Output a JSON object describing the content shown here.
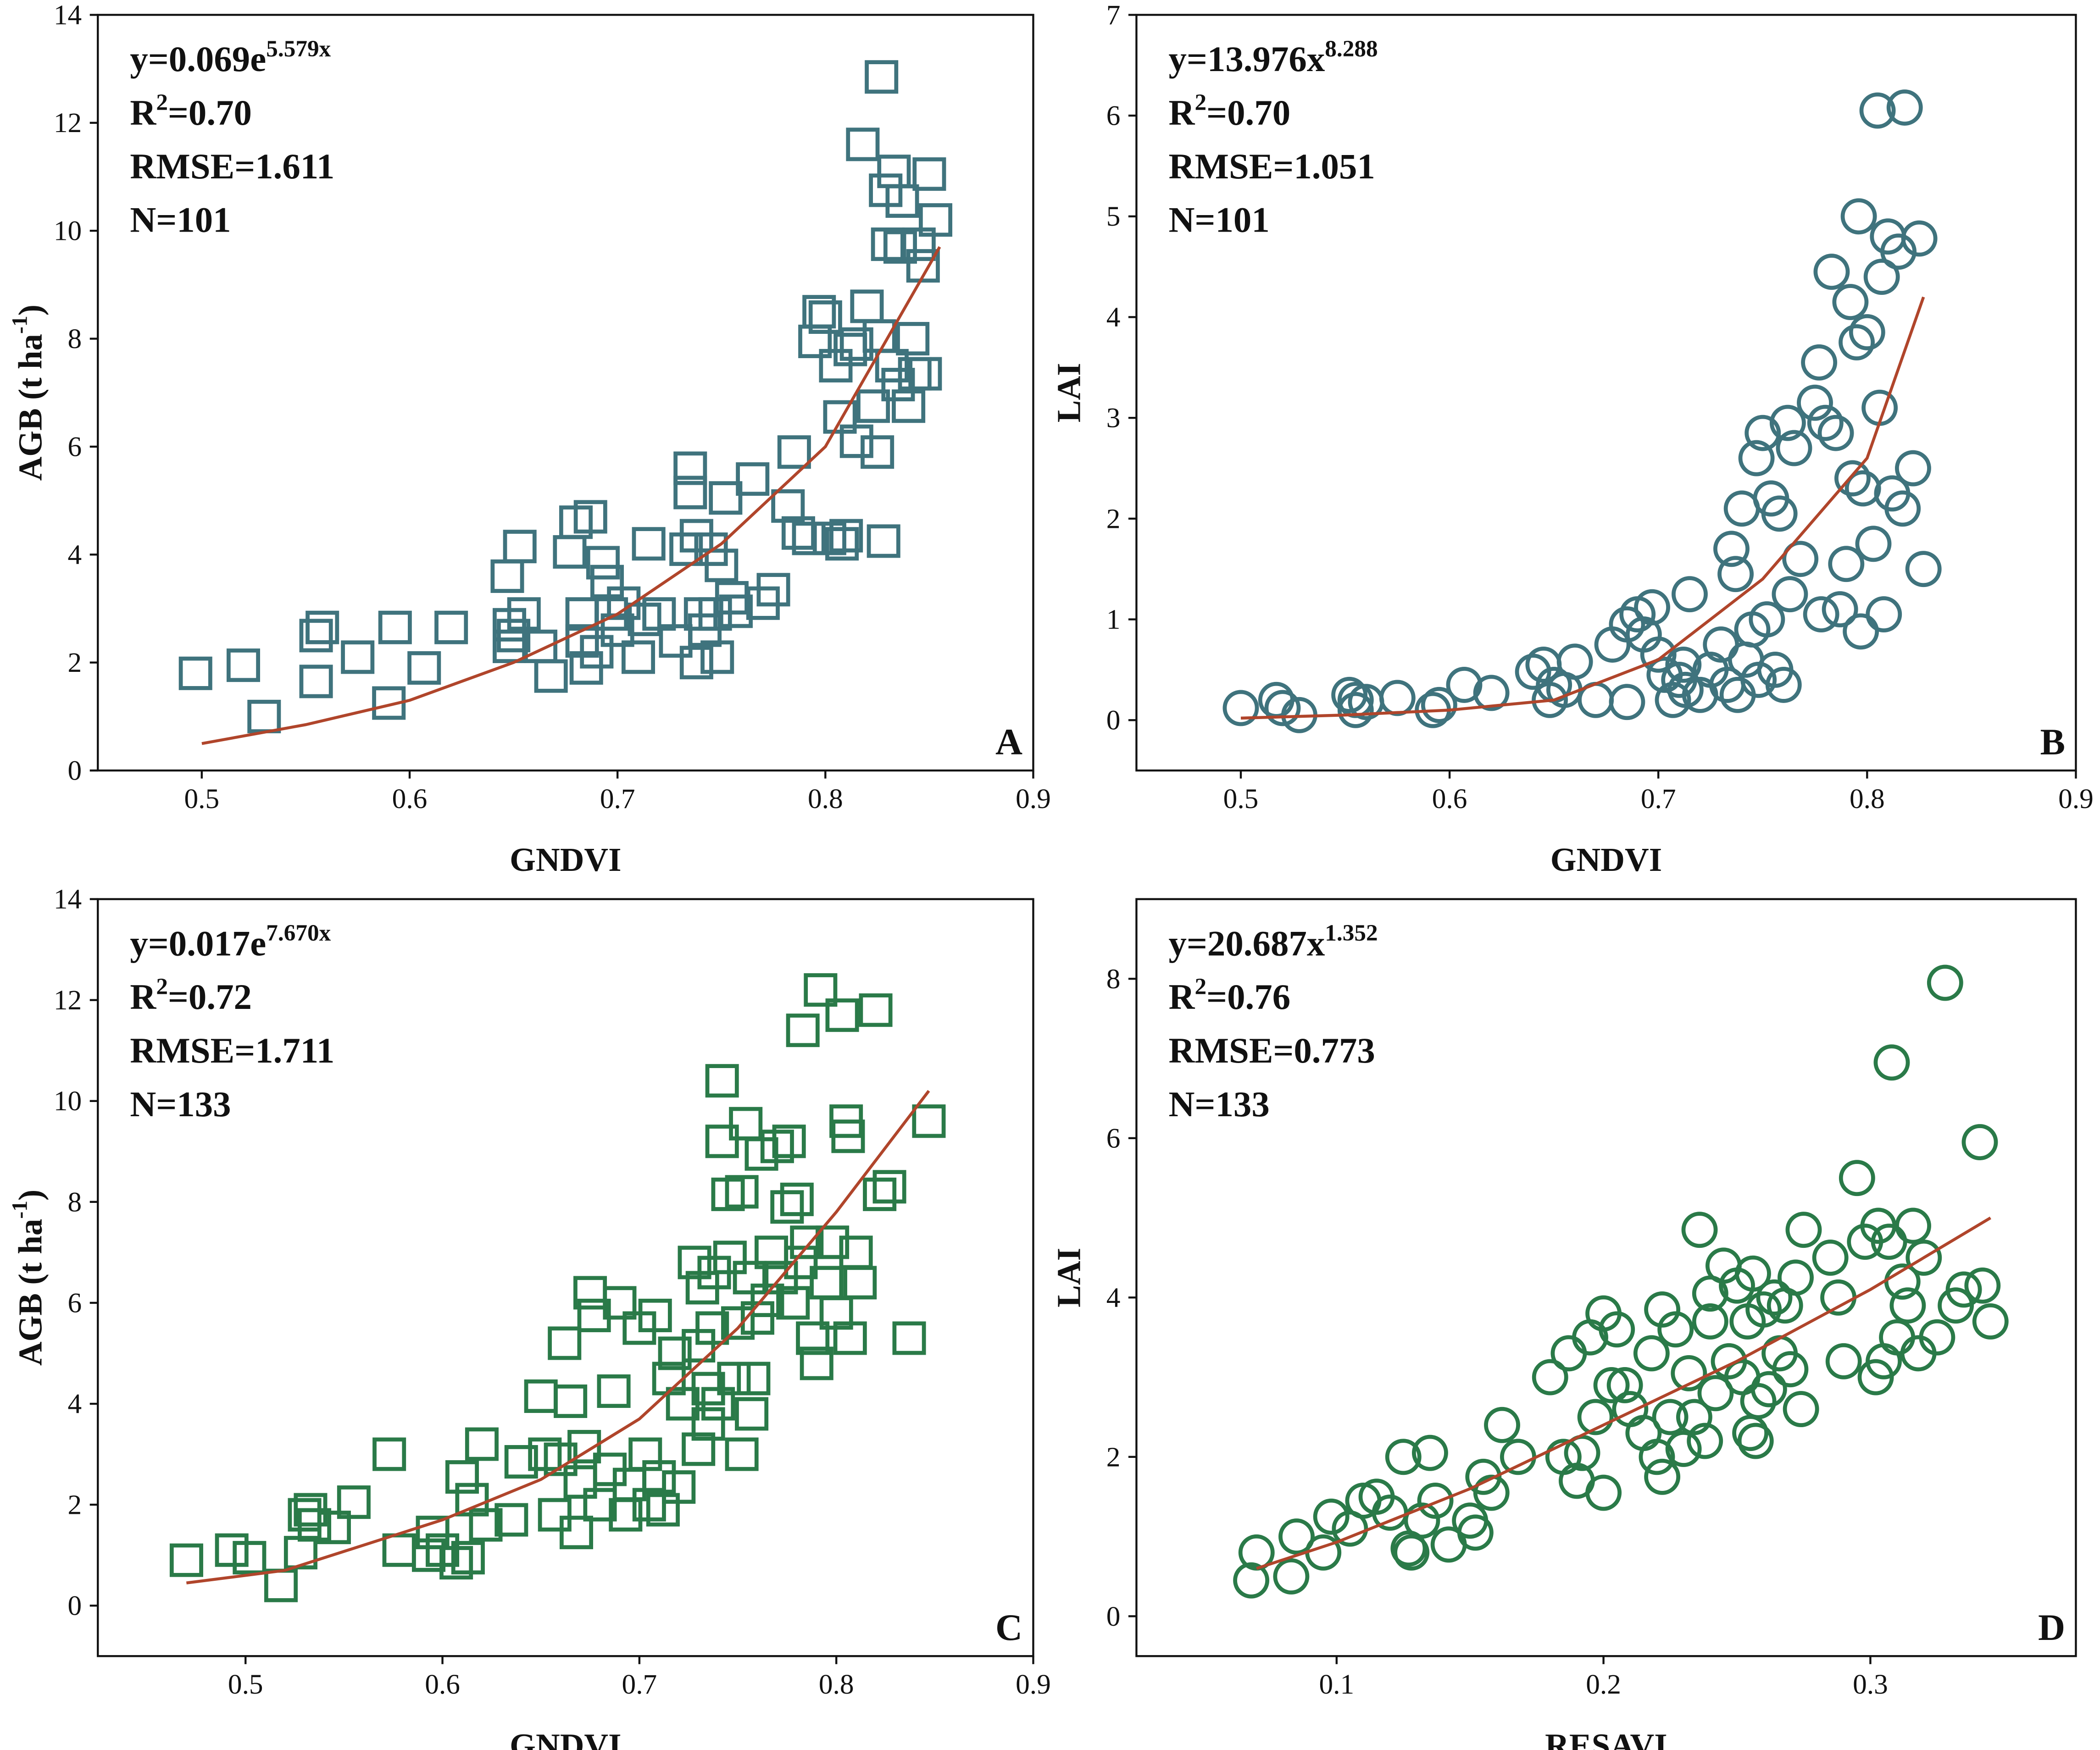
{
  "chart_data": [
    {
      "type": "scatter",
      "marker": "square",
      "color": "#3f737d",
      "fit_color": "#b0452b",
      "xlabel": {
        "text": "GNDVI"
      },
      "ylabel": {
        "text": "AGB (t ha",
        "sup": "-1",
        "tail": ")"
      },
      "panel_label": "A",
      "annotations": [
        {
          "text": "y=0.069e",
          "sup": "5.579x"
        },
        {
          "text": "R",
          "sup": "2",
          "tail": "=0.70"
        },
        {
          "text": "RMSE=1.611"
        },
        {
          "text": "N=101"
        }
      ],
      "xlim": [
        0.45,
        0.9
      ],
      "ylim": [
        0,
        14
      ],
      "xticks": [
        0.5,
        0.6,
        0.7,
        0.8,
        0.9
      ],
      "yticks": [
        0,
        2,
        4,
        6,
        8,
        10,
        12,
        14
      ],
      "x": [
        0.497,
        0.52,
        0.53,
        0.555,
        0.555,
        0.558,
        0.575,
        0.59,
        0.593,
        0.607,
        0.62,
        0.647,
        0.648,
        0.648,
        0.65,
        0.653,
        0.655,
        0.663,
        0.668,
        0.677,
        0.68,
        0.683,
        0.683,
        0.685,
        0.687,
        0.69,
        0.693,
        0.695,
        0.697,
        0.7,
        0.703,
        0.71,
        0.713,
        0.715,
        0.72,
        0.728,
        0.733,
        0.735,
        0.735,
        0.738,
        0.738,
        0.74,
        0.742,
        0.745,
        0.747,
        0.748,
        0.75,
        0.752,
        0.755,
        0.757,
        0.765,
        0.77,
        0.775,
        0.782,
        0.785,
        0.787,
        0.792,
        0.795,
        0.797,
        0.8,
        0.802,
        0.805,
        0.807,
        0.808,
        0.81,
        0.812,
        0.815,
        0.815,
        0.818,
        0.82,
        0.823,
        0.825,
        0.826,
        0.828,
        0.827,
        0.829,
        0.83,
        0.832,
        0.833,
        0.835,
        0.836,
        0.837,
        0.84,
        0.842,
        0.843,
        0.845,
        0.847,
        0.848,
        0.85,
        0.853
      ],
      "values": [
        1.8,
        1.95,
        1.0,
        2.5,
        1.65,
        2.65,
        2.1,
        1.25,
        2.65,
        1.9,
        2.65,
        3.6,
        2.7,
        2.3,
        2.5,
        4.15,
        2.9,
        2.3,
        1.75,
        4.05,
        4.6,
        2.9,
        2.4,
        1.9,
        4.7,
        2.2,
        3.85,
        3.5,
        2.9,
        2.6,
        3.1,
        2.1,
        2.8,
        4.2,
        2.9,
        2.4,
        4.1,
        5.6,
        5.15,
        4.35,
        2.0,
        2.9,
        2.6,
        4.1,
        2.9,
        2.1,
        3.8,
        5.05,
        3.2,
        2.95,
        5.4,
        3.1,
        3.35,
        4.9,
        5.9,
        4.4,
        4.3,
        7.95,
        8.5,
        8.4,
        4.3,
        7.5,
        6.55,
        4.2,
        4.35,
        7.8,
        6.1,
        7.9,
        11.6,
        8.6,
        6.75,
        5.9,
        8.05,
        4.25,
        12.85,
        10.75,
        9.75,
        7.5,
        11.1,
        7.15,
        9.7,
        10.55,
        6.75,
        8.0,
        7.35,
        9.75,
        9.35,
        7.35,
        11.05,
        10.2
      ],
      "fit": {
        "x": [
          0.5,
          0.55,
          0.6,
          0.65,
          0.7,
          0.75,
          0.8,
          0.855
        ],
        "values": [
          0.5,
          0.85,
          1.3,
          2.0,
          2.9,
          4.2,
          6.0,
          9.7
        ]
      }
    },
    {
      "type": "scatter",
      "marker": "circle",
      "color": "#3f737d",
      "fit_color": "#b0452b",
      "xlabel": {
        "text": "GNDVI"
      },
      "ylabel": {
        "text": "LAI"
      },
      "panel_label": "B",
      "annotations": [
        {
          "text": "y=13.976x",
          "sup": "8.288"
        },
        {
          "text": "R",
          "sup": "2",
          "tail": "=0.70"
        },
        {
          "text": "RMSE=1.051"
        },
        {
          "text": "N=101"
        }
      ],
      "xlim": [
        0.45,
        0.9
      ],
      "ylim": [
        -0.5,
        7
      ],
      "xticks": [
        0.5,
        0.6,
        0.7,
        0.8,
        0.9
      ],
      "yticks": [
        0,
        1,
        2,
        3,
        4,
        5,
        6,
        7
      ],
      "x": [
        0.5,
        0.517,
        0.52,
        0.528,
        0.552,
        0.555,
        0.555,
        0.56,
        0.575,
        0.592,
        0.595,
        0.607,
        0.62,
        0.64,
        0.645,
        0.648,
        0.65,
        0.655,
        0.66,
        0.67,
        0.678,
        0.685,
        0.685,
        0.69,
        0.693,
        0.697,
        0.7,
        0.703,
        0.707,
        0.71,
        0.712,
        0.713,
        0.715,
        0.72,
        0.725,
        0.73,
        0.733,
        0.735,
        0.737,
        0.738,
        0.74,
        0.742,
        0.745,
        0.747,
        0.748,
        0.75,
        0.752,
        0.754,
        0.756,
        0.758,
        0.76,
        0.762,
        0.763,
        0.765,
        0.768,
        0.775,
        0.777,
        0.778,
        0.78,
        0.783,
        0.785,
        0.787,
        0.79,
        0.792,
        0.793,
        0.795,
        0.796,
        0.797,
        0.798,
        0.8,
        0.803,
        0.805,
        0.806,
        0.807,
        0.808,
        0.81,
        0.812,
        0.815,
        0.817,
        0.818,
        0.822,
        0.825,
        0.827
      ],
      "values": [
        0.12,
        0.2,
        0.12,
        0.05,
        0.25,
        0.1,
        0.2,
        0.18,
        0.22,
        0.1,
        0.15,
        0.35,
        0.27,
        0.48,
        0.55,
        0.2,
        0.35,
        0.3,
        0.58,
        0.2,
        0.75,
        0.18,
        0.95,
        1.05,
        0.85,
        1.12,
        0.65,
        0.45,
        0.2,
        0.4,
        0.55,
        0.3,
        1.25,
        0.25,
        0.5,
        0.75,
        0.35,
        1.7,
        1.45,
        0.25,
        2.1,
        0.6,
        0.9,
        2.6,
        0.4,
        2.85,
        1.0,
        2.2,
        0.5,
        2.05,
        0.35,
        2.95,
        1.25,
        2.7,
        1.6,
        3.15,
        3.55,
        1.05,
        2.95,
        4.45,
        2.85,
        1.1,
        1.55,
        4.15,
        2.4,
        3.75,
        5.0,
        0.88,
        2.3,
        3.85,
        1.75,
        6.05,
        3.1,
        4.4,
        1.05,
        4.8,
        2.25,
        4.65,
        2.1,
        6.08,
        2.5,
        4.78,
        1.5
      ],
      "fit": {
        "x": [
          0.5,
          0.55,
          0.6,
          0.65,
          0.7,
          0.75,
          0.8,
          0.827
        ],
        "values": [
          0.02,
          0.05,
          0.1,
          0.2,
          0.6,
          1.4,
          2.6,
          4.2
        ]
      }
    },
    {
      "type": "scatter",
      "marker": "square",
      "color": "#2a7a48",
      "fit_color": "#b0452b",
      "xlabel": {
        "text": "GNDVI"
      },
      "ylabel": {
        "text": "AGB (t ha",
        "sup": "-1",
        "tail": ")"
      },
      "panel_label": "C",
      "annotations": [
        {
          "text": "y=0.017e",
          "sup": "7.670x"
        },
        {
          "text": "R",
          "sup": "2",
          "tail": "=0.72"
        },
        {
          "text": "RMSE=1.711"
        },
        {
          "text": "N=133"
        }
      ],
      "xlim": [
        0.425,
        0.9
      ],
      "ylim": [
        -1,
        14
      ],
      "xticks": [
        0.5,
        0.6,
        0.7,
        0.8,
        0.9
      ],
      "yticks": [
        0,
        2,
        4,
        6,
        8,
        10,
        12,
        14
      ],
      "x": [
        0.47,
        0.493,
        0.502,
        0.518,
        0.528,
        0.53,
        0.533,
        0.535,
        0.545,
        0.555,
        0.573,
        0.578,
        0.593,
        0.595,
        0.6,
        0.607,
        0.61,
        0.613,
        0.615,
        0.62,
        0.622,
        0.635,
        0.64,
        0.65,
        0.652,
        0.657,
        0.66,
        0.662,
        0.665,
        0.668,
        0.67,
        0.672,
        0.675,
        0.677,
        0.68,
        0.685,
        0.687,
        0.69,
        0.693,
        0.695,
        0.7,
        0.703,
        0.705,
        0.708,
        0.71,
        0.712,
        0.715,
        0.718,
        0.72,
        0.722,
        0.728,
        0.73,
        0.73,
        0.732,
        0.735,
        0.735,
        0.737,
        0.738,
        0.74,
        0.742,
        0.742,
        0.745,
        0.746,
        0.748,
        0.75,
        0.752,
        0.752,
        0.754,
        0.756,
        0.757,
        0.758,
        0.76,
        0.762,
        0.765,
        0.767,
        0.77,
        0.772,
        0.775,
        0.776,
        0.778,
        0.78,
        0.782,
        0.783,
        0.785,
        0.788,
        0.79,
        0.792,
        0.795,
        0.798,
        0.8,
        0.803,
        0.805,
        0.806,
        0.807,
        0.81,
        0.812,
        0.82,
        0.822,
        0.827,
        0.837,
        0.847
      ],
      "values": [
        0.9,
        1.1,
        0.95,
        0.4,
        1.05,
        1.8,
        1.9,
        1.6,
        1.55,
        2.05,
        3.0,
        1.1,
        1.0,
        1.45,
        1.1,
        0.85,
        2.55,
        0.95,
        2.1,
        3.2,
        1.6,
        1.7,
        2.85,
        4.15,
        3.0,
        1.8,
        2.9,
        5.2,
        4.05,
        1.45,
        2.45,
        3.15,
        6.2,
        5.75,
        2.0,
        2.7,
        4.25,
        6.0,
        1.8,
        2.4,
        5.5,
        3.0,
        2.0,
        5.75,
        2.55,
        1.9,
        4.5,
        5.0,
        2.35,
        4.0,
        6.8,
        3.1,
        5.15,
        6.3,
        3.6,
        4.3,
        5.5,
        6.6,
        4.0,
        9.2,
        10.4,
        8.15,
        6.9,
        4.5,
        5.6,
        3.0,
        8.2,
        9.55,
        6.5,
        3.8,
        4.5,
        5.7,
        8.95,
        6.05,
        7.0,
        9.1,
        6.5,
        7.9,
        9.2,
        6.0,
        8.05,
        6.8,
        11.4,
        7.2,
        5.3,
        4.8,
        12.2,
        6.4,
        7.2,
        5.8,
        11.7,
        9.6,
        9.3,
        5.3,
        7.0,
        6.4,
        11.8,
        8.15,
        8.3,
        5.3,
        9.6
      ],
      "fit": {
        "x": [
          0.47,
          0.52,
          0.6,
          0.65,
          0.7,
          0.75,
          0.8,
          0.847
        ],
        "values": [
          0.45,
          0.7,
          1.7,
          2.5,
          3.7,
          5.5,
          7.8,
          10.2
        ]
      }
    },
    {
      "type": "scatter",
      "marker": "circle",
      "color": "#2a7a48",
      "fit_color": "#b0452b",
      "xlabel": {
        "text": "RESAVI"
      },
      "ylabel": {
        "text": "LAI"
      },
      "panel_label": "D",
      "annotations": [
        {
          "text": "y=20.687x",
          "sup": "1.352"
        },
        {
          "text": "R",
          "sup": "2",
          "tail": "=0.76"
        },
        {
          "text": "RMSE=0.773"
        },
        {
          "text": "N=133"
        }
      ],
      "xlim": [
        0.025,
        0.377
      ],
      "ylim": [
        -0.5,
        9
      ],
      "xticks": [
        0.1,
        0.2,
        0.3
      ],
      "yticks": [
        0,
        2,
        4,
        6,
        8
      ],
      "x": [
        0.068,
        0.07,
        0.083,
        0.085,
        0.095,
        0.098,
        0.105,
        0.11,
        0.115,
        0.12,
        0.125,
        0.127,
        0.128,
        0.132,
        0.135,
        0.137,
        0.142,
        0.15,
        0.152,
        0.155,
        0.158,
        0.162,
        0.168,
        0.18,
        0.185,
        0.187,
        0.19,
        0.192,
        0.195,
        0.197,
        0.2,
        0.2,
        0.203,
        0.205,
        0.208,
        0.21,
        0.215,
        0.218,
        0.22,
        0.222,
        0.222,
        0.225,
        0.227,
        0.23,
        0.232,
        0.234,
        0.236,
        0.238,
        0.24,
        0.24,
        0.242,
        0.245,
        0.247,
        0.25,
        0.252,
        0.254,
        0.255,
        0.256,
        0.257,
        0.258,
        0.26,
        0.262,
        0.264,
        0.266,
        0.268,
        0.27,
        0.272,
        0.274,
        0.275,
        0.285,
        0.288,
        0.29,
        0.295,
        0.298,
        0.302,
        0.303,
        0.305,
        0.307,
        0.308,
        0.31,
        0.312,
        0.314,
        0.316,
        0.318,
        0.32,
        0.325,
        0.328,
        0.332,
        0.335,
        0.341,
        0.342,
        0.345
      ],
      "values": [
        0.45,
        0.8,
        0.5,
        1.0,
        0.8,
        1.25,
        1.1,
        1.45,
        1.5,
        1.3,
        2.0,
        0.85,
        0.8,
        1.2,
        2.05,
        1.45,
        0.9,
        1.2,
        1.05,
        1.75,
        1.55,
        2.4,
        2.0,
        3.0,
        2.0,
        3.3,
        1.7,
        2.05,
        3.5,
        2.5,
        1.55,
        3.8,
        2.9,
        3.6,
        2.9,
        2.6,
        2.3,
        3.3,
        2.0,
        3.85,
        1.75,
        2.5,
        3.6,
        2.1,
        3.05,
        2.5,
        4.85,
        2.2,
        3.7,
        4.05,
        2.8,
        4.4,
        3.2,
        4.15,
        3.0,
        3.7,
        2.3,
        4.3,
        2.2,
        2.7,
        3.85,
        2.85,
        4.0,
        3.3,
        3.9,
        3.1,
        4.25,
        2.6,
        4.85,
        4.5,
        4.0,
        3.2,
        5.5,
        4.7,
        3.0,
        4.9,
        3.2,
        4.7,
        6.95,
        3.5,
        4.2,
        3.9,
        4.9,
        3.3,
        4.5,
        3.5,
        7.95,
        3.9,
        4.1,
        5.95,
        4.15,
        3.7
      ],
      "fit": {
        "x": [
          0.07,
          0.1,
          0.15,
          0.2,
          0.25,
          0.3,
          0.345
        ],
        "values": [
          0.6,
          0.93,
          1.6,
          2.4,
          3.2,
          4.1,
          5.0
        ]
      }
    }
  ]
}
